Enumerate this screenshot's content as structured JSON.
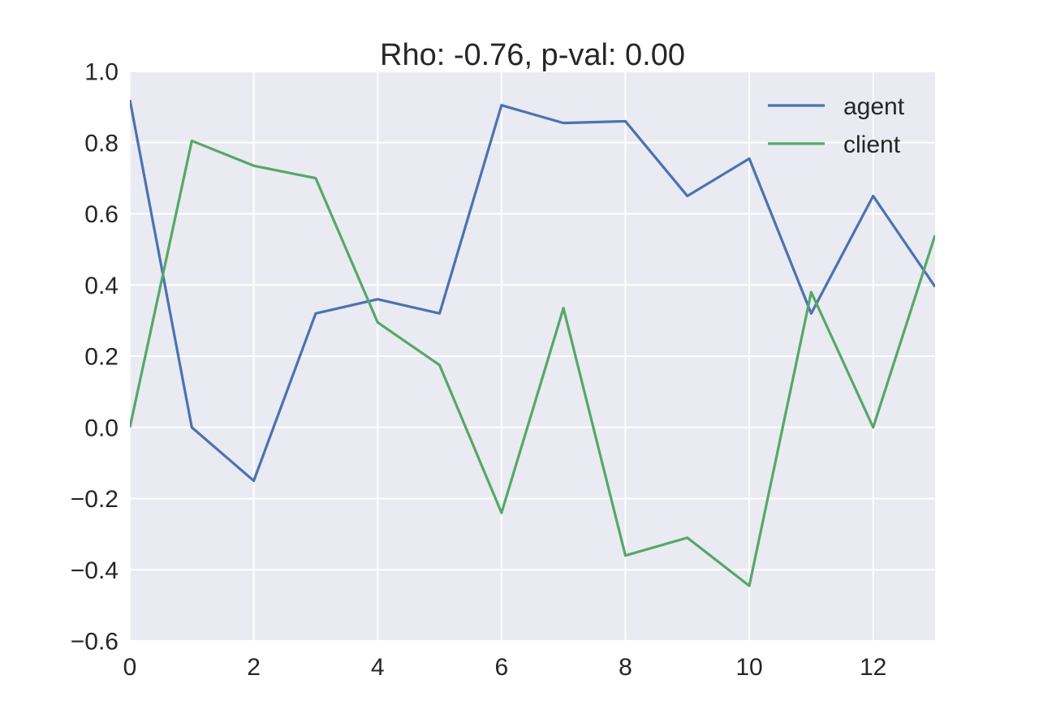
{
  "chart_data": {
    "type": "line",
    "title": "Rho: -0.76, p-val: 0.00",
    "xlabel": "",
    "ylabel": "",
    "xlim": [
      0,
      13
    ],
    "ylim": [
      -0.6,
      1.0
    ],
    "x": [
      0,
      1,
      2,
      3,
      4,
      5,
      6,
      7,
      8,
      9,
      10,
      11,
      12,
      13
    ],
    "x_ticks": [
      0,
      2,
      4,
      6,
      8,
      10,
      12
    ],
    "y_ticks": [
      -0.6,
      -0.4,
      -0.2,
      0.0,
      0.2,
      0.4,
      0.6,
      0.8,
      1.0
    ],
    "x_tick_labels": [
      "0",
      "2",
      "4",
      "6",
      "8",
      "10",
      "12"
    ],
    "y_tick_labels": [
      "−0.6",
      "−0.4",
      "−0.2",
      "0.0",
      "0.2",
      "0.4",
      "0.6",
      "0.8",
      "1.0"
    ],
    "grid": true,
    "legend_position": "top-right",
    "series": [
      {
        "name": "agent",
        "color": "#4C72B0",
        "values": [
          0.92,
          0.0,
          -0.15,
          0.32,
          0.36,
          0.32,
          0.905,
          0.855,
          0.86,
          0.65,
          0.755,
          0.32,
          0.65,
          0.395
        ]
      },
      {
        "name": "client",
        "color": "#55A868",
        "values": [
          0.0,
          0.805,
          0.735,
          0.7,
          0.295,
          0.175,
          -0.24,
          0.335,
          -0.36,
          -0.31,
          -0.445,
          0.38,
          0.0,
          0.54
        ]
      }
    ]
  }
}
